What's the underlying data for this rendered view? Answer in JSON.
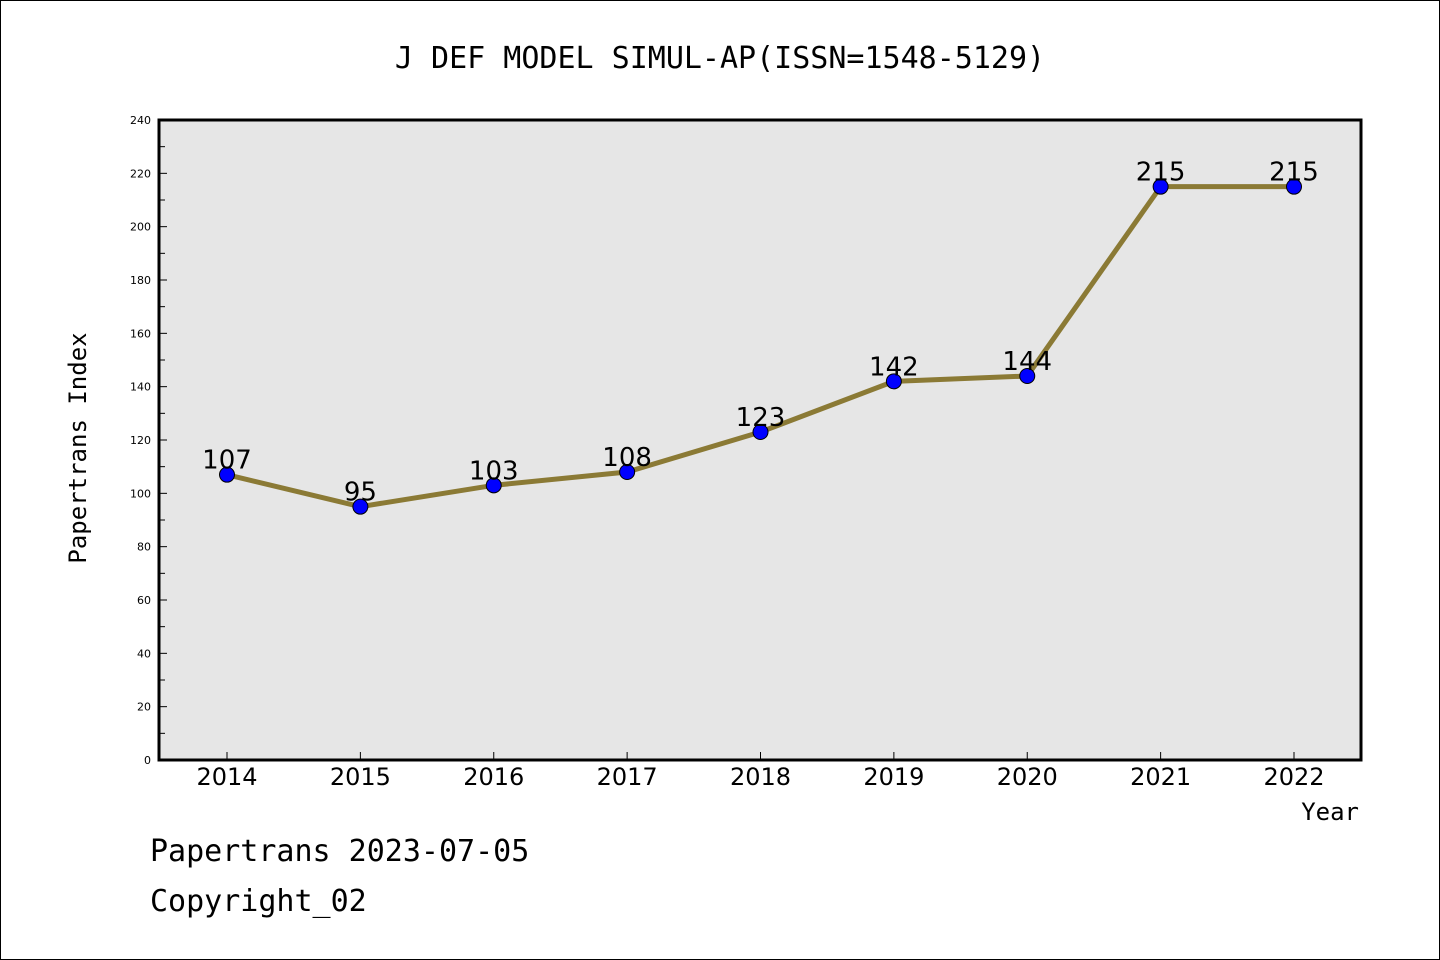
{
  "chart_data": {
    "type": "line",
    "title": "J DEF MODEL SIMUL-AP(ISSN=1548-5129)",
    "xlabel": "Year",
    "ylabel": "Papertrans Index",
    "x": [
      "2014",
      "2015",
      "2016",
      "2017",
      "2018",
      "2019",
      "2020",
      "2021",
      "2022"
    ],
    "values": [
      107,
      95,
      103,
      108,
      123,
      142,
      144,
      215,
      215
    ],
    "data_labels": [
      "107",
      "95",
      "103",
      "108",
      "123",
      "142",
      "144",
      "215",
      "215"
    ],
    "ylim": [
      0,
      240
    ],
    "yticks": [
      "0",
      "20",
      "40",
      "60",
      "80",
      "100",
      "120",
      "140",
      "160",
      "180",
      "200",
      "220",
      "240"
    ],
    "grid": false,
    "colors": {
      "line": "#8B7A35",
      "marker": "#0000FF",
      "plot_background": "#E6E6E6"
    }
  },
  "footer": {
    "date_text": "Papertrans 2023-07-05",
    "copyright_text": "Copyright_02"
  }
}
